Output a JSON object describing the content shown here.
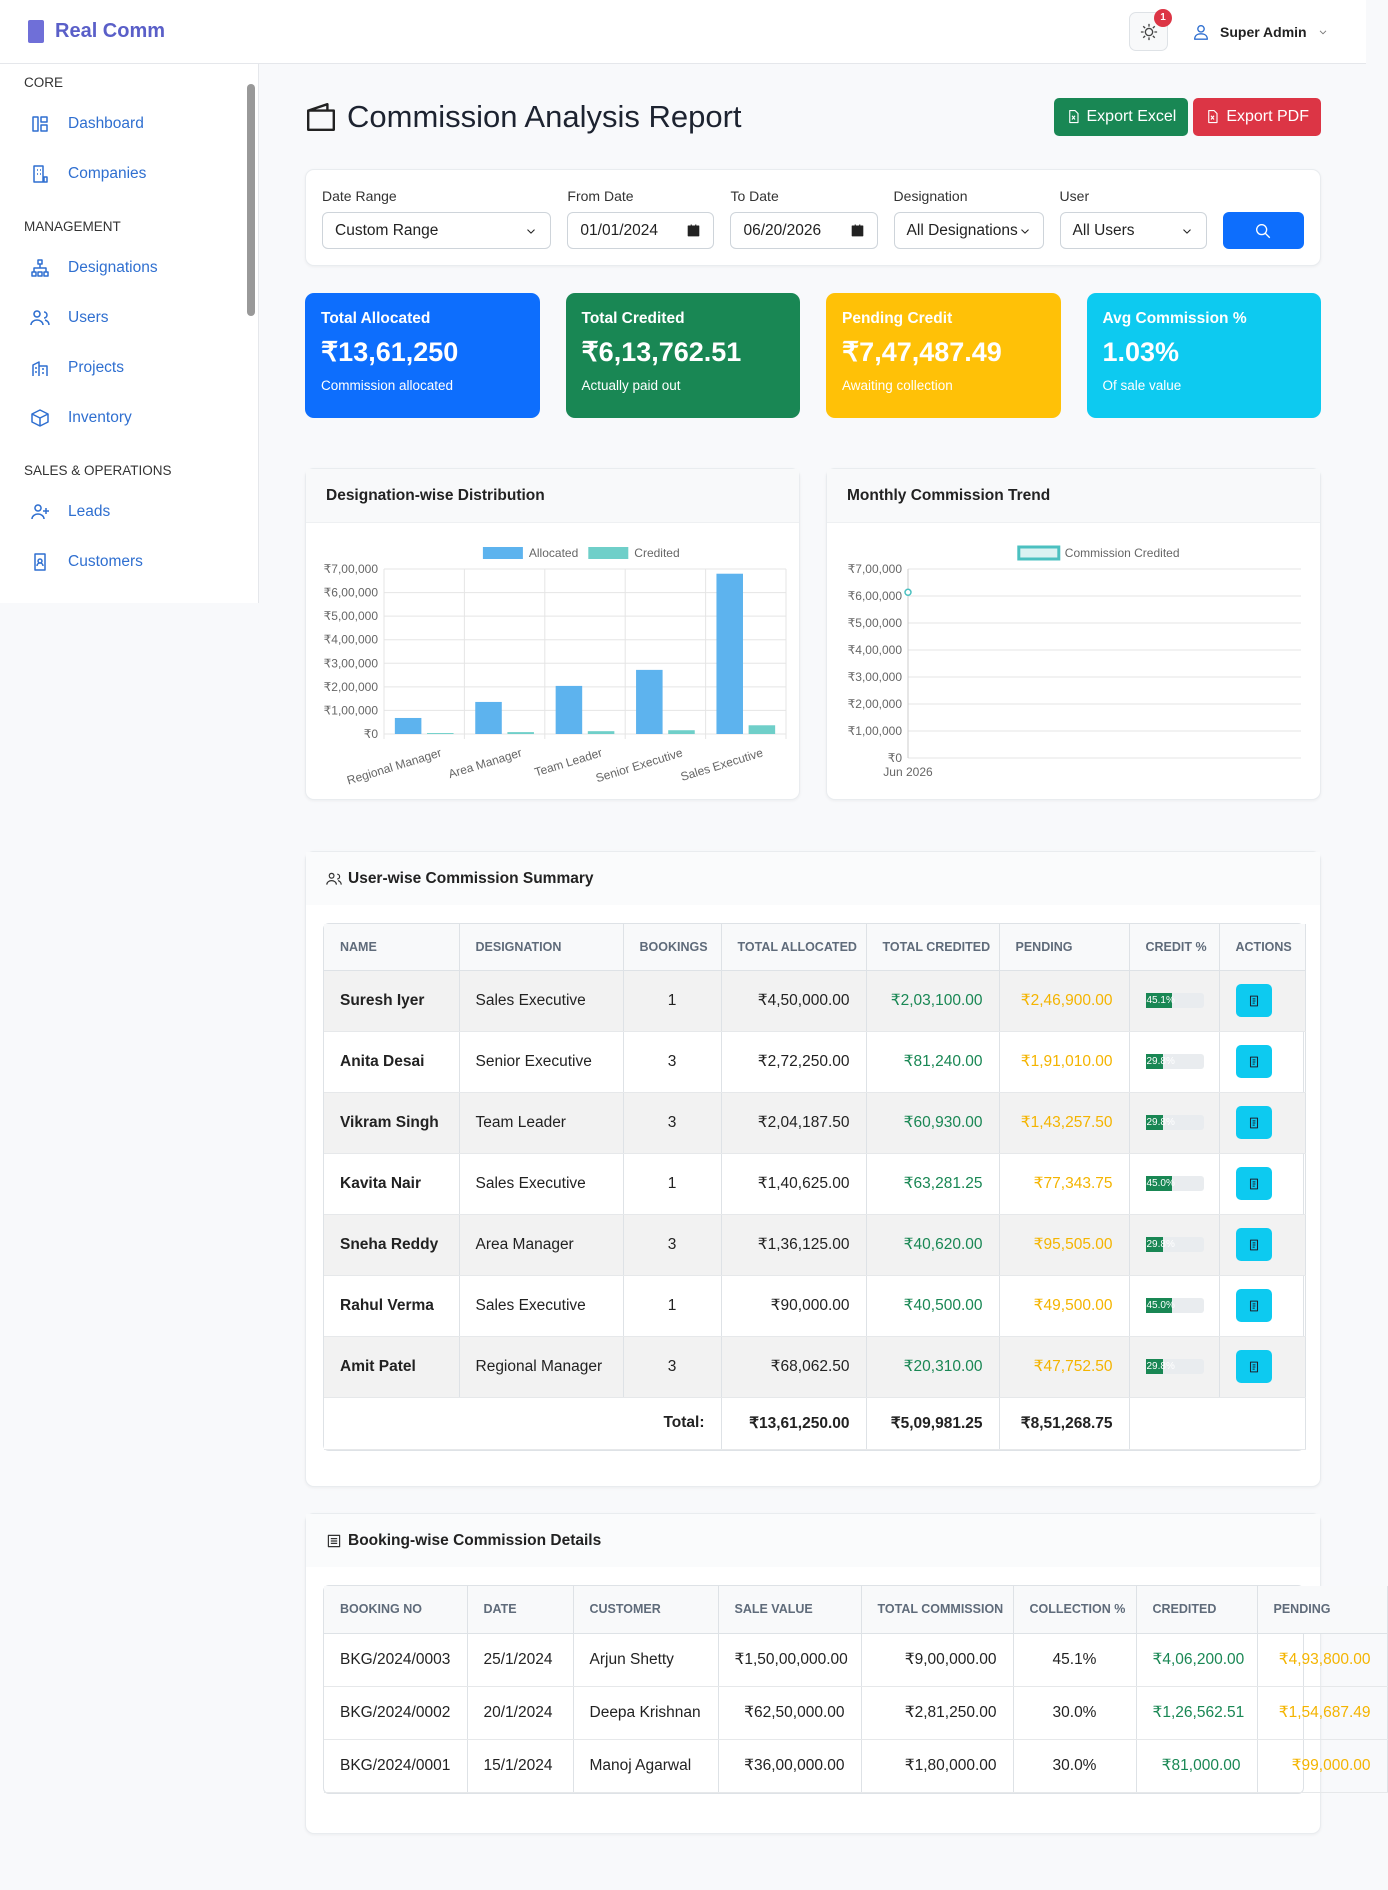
{
  "brand": "Real Comm",
  "header": {
    "notification_count": "1",
    "user": "Super Admin"
  },
  "sidebar": [
    {
      "section": "CORE",
      "items": [
        "Dashboard",
        "Companies"
      ]
    },
    {
      "section": "MANAGEMENT",
      "items": [
        "Designations",
        "Users",
        "Projects",
        "Inventory"
      ]
    },
    {
      "section": "SALES & OPERATIONS",
      "items": [
        "Leads",
        "Customers"
      ]
    }
  ],
  "page": {
    "title": "Commission Analysis Report",
    "buttons": [
      "Export Excel",
      "Export PDF"
    ]
  },
  "filters": [
    {
      "label": "Date Range",
      "value": "Custom Range"
    },
    {
      "label": "From Date",
      "value": "01/01/2024"
    },
    {
      "label": "To Date",
      "value": "06/20/2026"
    },
    {
      "label": "Designation",
      "value": "All Designations"
    },
    {
      "label": "User",
      "value": "All Users"
    }
  ],
  "stats": [
    {
      "title": "Total Allocated",
      "value": "₹13,61,250",
      "note": "Commission allocated"
    },
    {
      "title": "Total Credited",
      "value": "₹6,13,762.51",
      "note": "Actually paid out"
    },
    {
      "title": "Pending Credit",
      "value": "₹7,47,487.49",
      "note": "Awaiting collection"
    },
    {
      "title": "Avg Commission %",
      "value": "1.03%",
      "note": "Of sale value"
    }
  ],
  "chart_data": [
    {
      "type": "bar",
      "title": "Designation-wise Distribution",
      "categories": [
        "Regional Manager",
        "Area Manager",
        "Team Leader",
        "Senior Executive",
        "Sales Executive"
      ],
      "series": [
        {
          "name": "Allocated",
          "color": "#5db3ee",
          "values": [
            68000,
            136000,
            204000,
            272000,
            680000
          ]
        },
        {
          "name": "Credited",
          "color": "#6fcfc9",
          "values": [
            4000,
            8000,
            12000,
            16000,
            37000
          ]
        }
      ],
      "ylim": [
        0,
        700000
      ],
      "yticks": [
        {
          "value": 0,
          "label": "₹0"
        },
        {
          "value": 100000,
          "label": "₹1,00,000"
        },
        {
          "value": 200000,
          "label": "₹2,00,000"
        },
        {
          "value": 300000,
          "label": "₹3,00,000"
        },
        {
          "value": 400000,
          "label": "₹4,00,000"
        },
        {
          "value": 500000,
          "label": "₹5,00,000"
        },
        {
          "value": 600000,
          "label": "₹6,00,000"
        },
        {
          "value": 700000,
          "label": "₹7,00,000"
        }
      ],
      "grid": true
    },
    {
      "type": "line",
      "title": "Monthly Commission Trend",
      "categories": [
        "Jun 2026"
      ],
      "series": [
        {
          "name": "Commission Credited",
          "color": "#4bc0c0",
          "values": [
            613762.51
          ]
        }
      ],
      "ylim": [
        0,
        700000
      ],
      "yticks": [
        {
          "value": 0,
          "label": "₹0"
        },
        {
          "value": 100000,
          "label": "₹1,00,000"
        },
        {
          "value": 200000,
          "label": "₹2,00,000"
        },
        {
          "value": 300000,
          "label": "₹3,00,000"
        },
        {
          "value": 400000,
          "label": "₹4,00,000"
        },
        {
          "value": 500000,
          "label": "₹5,00,000"
        },
        {
          "value": 600000,
          "label": "₹6,00,000"
        },
        {
          "value": 700000,
          "label": "₹7,00,000"
        }
      ],
      "grid": true
    }
  ],
  "user_summary": {
    "title": "User-wise Commission Summary",
    "columns": [
      "NAME",
      "DESIGNATION",
      "BOOKINGS",
      "TOTAL ALLOCATED",
      "TOTAL CREDITED",
      "PENDING",
      "CREDIT %",
      "ACTIONS"
    ],
    "rows": [
      [
        "Suresh Iyer",
        "Sales Executive",
        "1",
        "₹4,50,000.00",
        "₹2,03,100.00",
        "₹2,46,900.00"
      ],
      [
        "Anita Desai",
        "Senior Executive",
        "3",
        "₹2,72,250.00",
        "₹81,240.00",
        "₹1,91,010.00"
      ],
      [
        "Vikram Singh",
        "Team Leader",
        "3",
        "₹2,04,187.50",
        "₹60,930.00",
        "₹1,43,257.50"
      ],
      [
        "Kavita Nair",
        "Sales Executive",
        "1",
        "₹1,40,625.00",
        "₹63,281.25",
        "₹77,343.75"
      ],
      [
        "Sneha Reddy",
        "Area Manager",
        "3",
        "₹1,36,125.00",
        "₹40,620.00",
        "₹95,505.00"
      ],
      [
        "Rahul Verma",
        "Sales Executive",
        "1",
        "₹90,000.00",
        "₹40,500.00",
        "₹49,500.00"
      ],
      [
        "Amit Patel",
        "Regional Manager",
        "3",
        "₹68,062.50",
        "₹20,310.00",
        "₹47,752.50"
      ]
    ],
    "credit": [
      45.1,
      29.8,
      29.8,
      45.0,
      29.8,
      45.0,
      29.8
    ],
    "credit_labels": [
      "45.1%",
      "29.8%",
      "29.8%",
      "45.0%",
      "29.8%",
      "45.0%",
      "29.8%"
    ],
    "total": {
      "label": "Total:",
      "values": [
        "₹13,61,250.00",
        "₹5,09,981.25",
        "₹8,51,268.75"
      ]
    }
  },
  "booking_details": {
    "title": "Booking-wise Commission Details",
    "columns": [
      "BOOKING NO",
      "DATE",
      "CUSTOMER",
      "SALE VALUE",
      "TOTAL COMMISSION",
      "COLLECTION %",
      "CREDITED",
      "PENDING"
    ],
    "rows": [
      [
        "BKG/2024/0003",
        "25/1/2024",
        "Arjun Shetty",
        "₹1,50,00,000.00",
        "₹9,00,000.00",
        "45.1%",
        "₹4,06,200.00",
        "₹4,93,800.00"
      ],
      [
        "BKG/2024/0002",
        "20/1/2024",
        "Deepa Krishnan",
        "₹62,50,000.00",
        "₹2,81,250.00",
        "30.0%",
        "₹1,26,562.51",
        "₹1,54,687.49"
      ],
      [
        "BKG/2024/0001",
        "15/1/2024",
        "Manoj Agarwal",
        "₹36,00,000.00",
        "₹1,80,000.00",
        "30.0%",
        "₹81,000.00",
        "₹99,000.00"
      ]
    ]
  }
}
